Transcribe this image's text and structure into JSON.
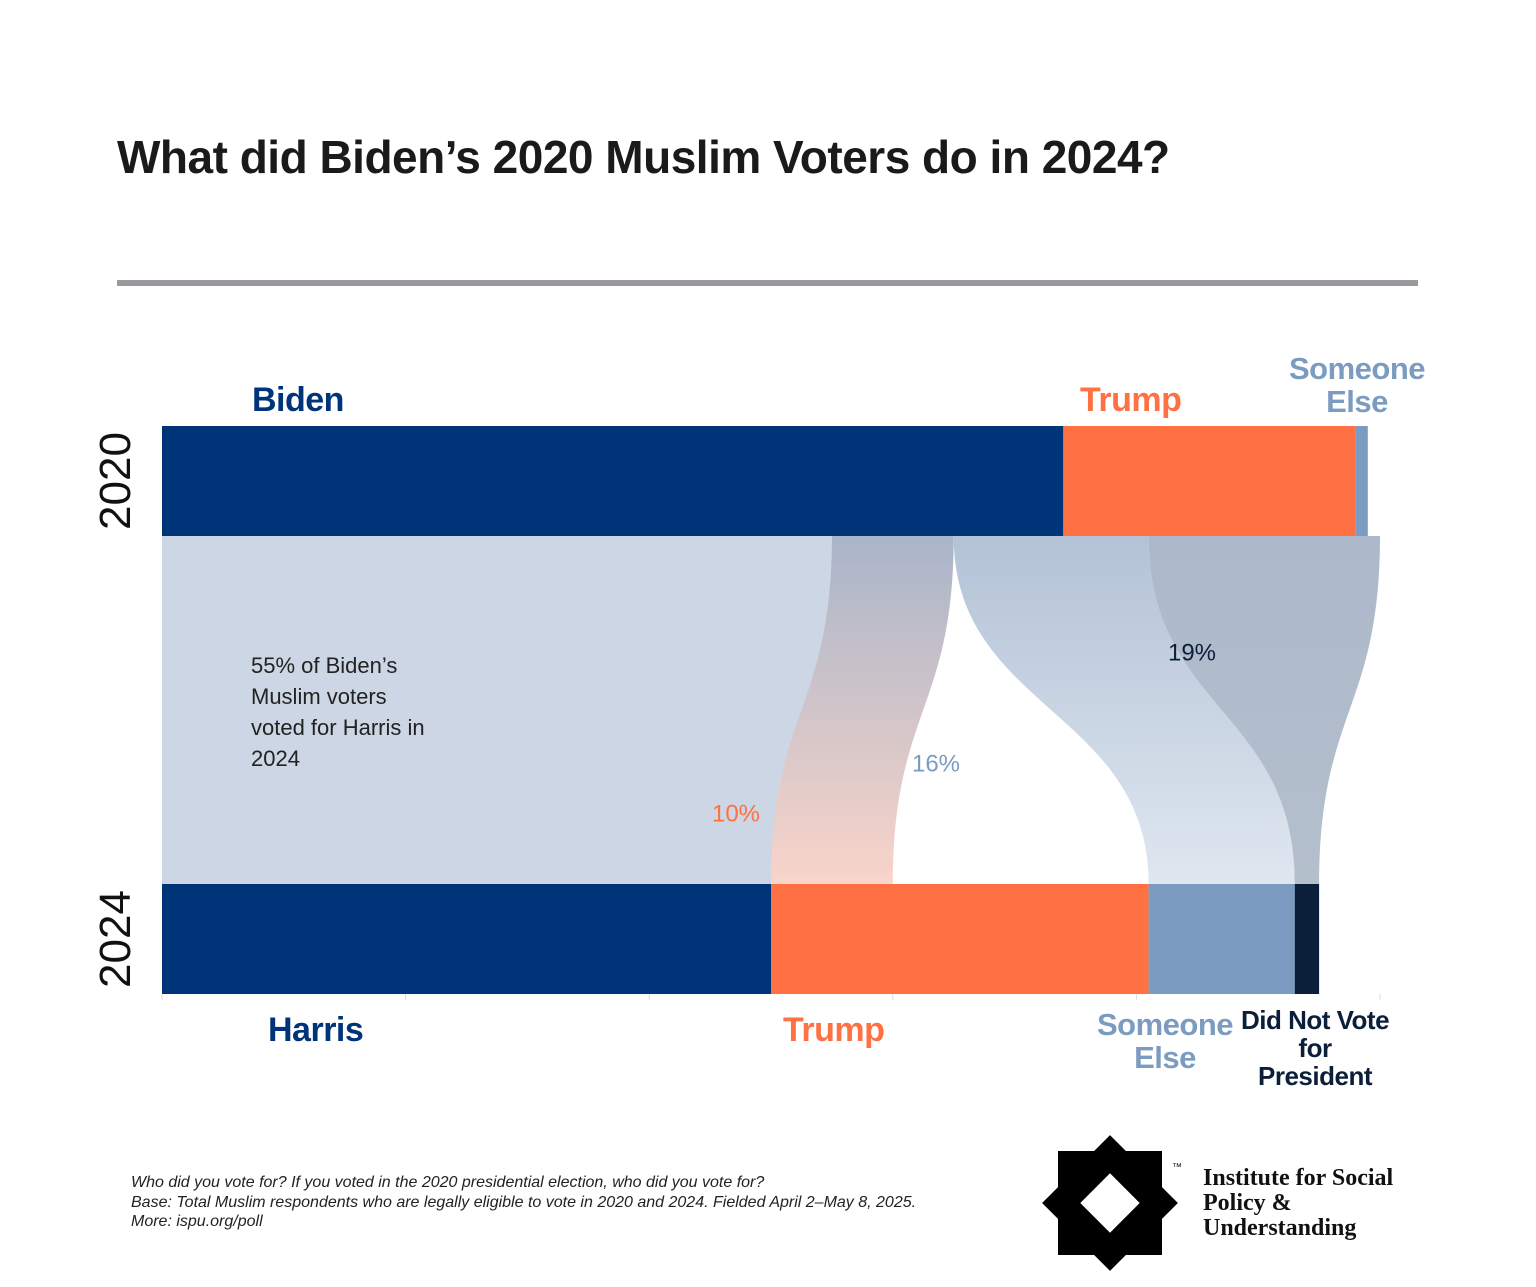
{
  "chart_data": {
    "type": "sankey",
    "title": "What did Biden’s 2020 Muslim Voters do in 2024?",
    "xlim": [
      0,
      100
    ],
    "rows": [
      {
        "label": "2020",
        "segments": [
          {
            "name": "Biden",
            "color": "#003478",
            "value": 74
          },
          {
            "name": "Trump",
            "color": "#ff7043",
            "value": 24
          },
          {
            "name": "Someone Else",
            "color": "#7b9cc0",
            "value": 1
          }
        ]
      },
      {
        "label": "2024",
        "segments": [
          {
            "name": "Harris",
            "color": "#003478",
            "value": 50
          },
          {
            "name": "Trump",
            "color": "#ff7043",
            "value": 31
          },
          {
            "name": "Someone Else",
            "color": "#7b9cc0",
            "value": 12
          },
          {
            "name": "Did Not Vote for President",
            "color": "#0b1f3a",
            "value": 2
          }
        ]
      }
    ],
    "flows": {
      "values": [
        55,
        10,
        16,
        19
      ],
      "value_labels": [
        null,
        "10%",
        "16%",
        "19%"
      ],
      "to": [
        0,
        1,
        2,
        3
      ],
      "colors": [
        [
          "#cdd6e4",
          "#cdd6e4"
        ],
        [
          "#a9b5c9",
          "#f9d4c9"
        ],
        [
          "#b3c2d6",
          "#dfe7f0"
        ],
        [
          "#adb9cb",
          "#b4bfcc"
        ]
      ],
      "label_colors": [
        null,
        "#ff7043",
        "#7b9cc0",
        "#0b1f3a"
      ]
    },
    "annotation": "55% of Biden’s Muslim voters voted for Harris in 2024",
    "question": "Who did you vote for? If you voted in the 2020 presidential election, who did you vote for?",
    "base": "Base: Total Muslim respondents who are legally eligible to vote in 2020 and 2024. Fielded April 2–May 8, 2025. More: ispu.org/poll",
    "logo_text": "Institute for Social Policy & Understanding",
    "logo_mark": "™"
  }
}
